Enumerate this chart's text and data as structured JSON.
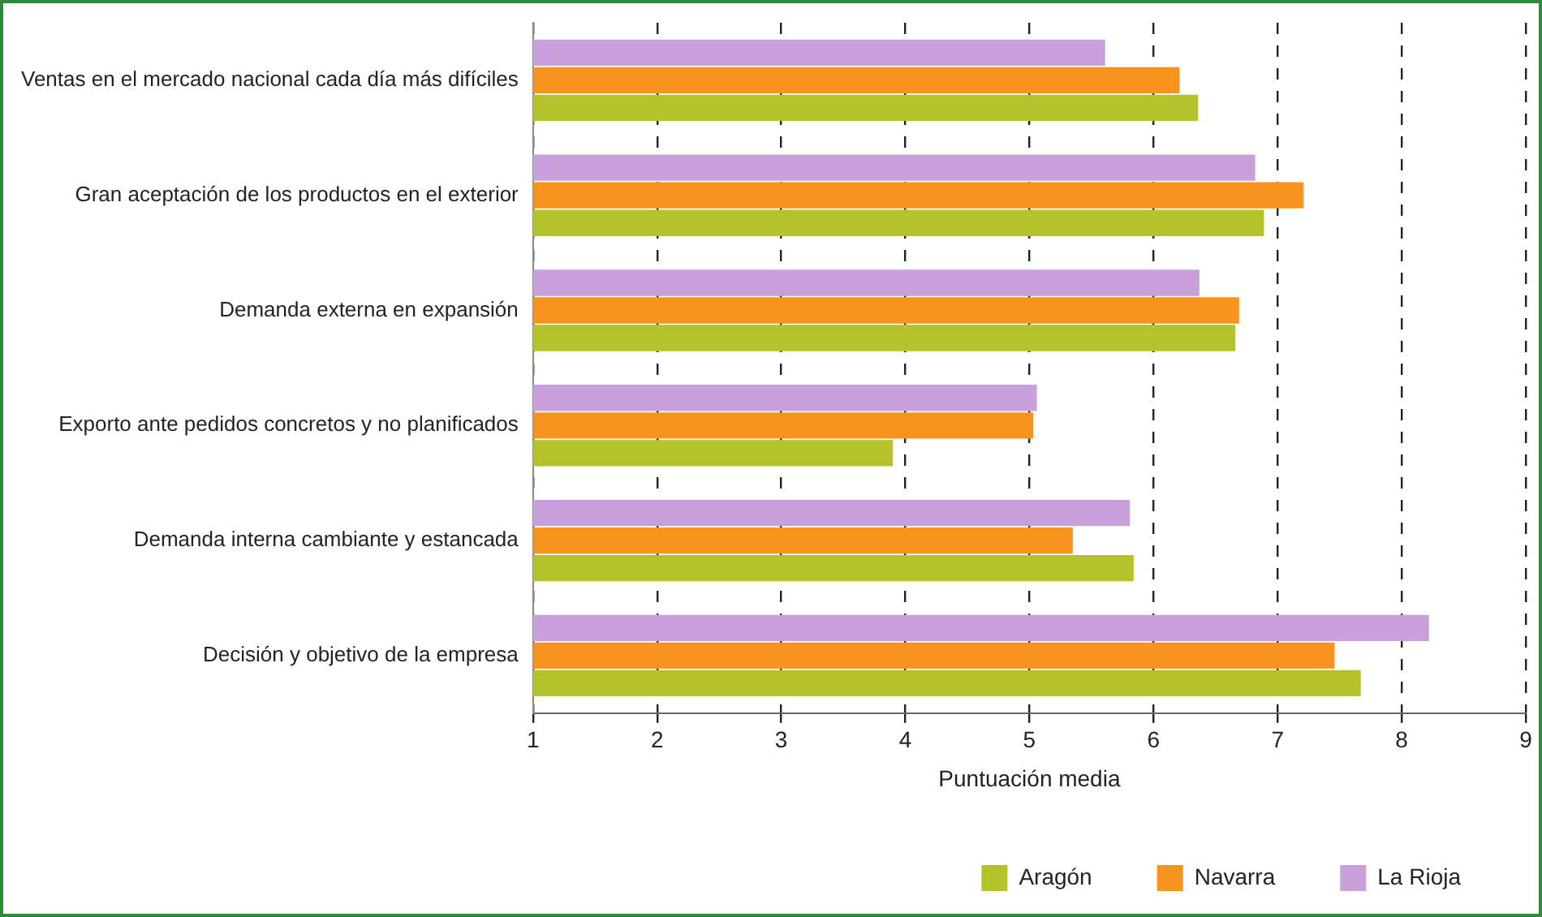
{
  "chart_data": {
    "type": "bar",
    "orientation": "horizontal",
    "xlabel": "Puntuación media",
    "categories": [
      "Ventas en el mercado nacional cada día más difíciles",
      "Gran aceptación de los productos en el exterior",
      "Demanda externa en expansión",
      "Exporto ante pedidos concretos y no planificados",
      "Demanda interna cambiante y estancada",
      "Decisión y objetivo de la empresa"
    ],
    "series": [
      {
        "name": "Aragón",
        "color": "#b5c22a",
        "values": [
          6.36,
          6.89,
          6.66,
          3.9,
          5.84,
          7.67
        ]
      },
      {
        "name": "Navarra",
        "color": "#f7941d",
        "values": [
          6.21,
          7.21,
          6.69,
          5.03,
          5.35,
          7.46
        ]
      },
      {
        "name": "La Rioja",
        "color": "#c9a0dc",
        "values": [
          5.61,
          6.82,
          6.37,
          5.06,
          5.81,
          8.22
        ]
      }
    ],
    "xlim": [
      1,
      9
    ],
    "xticks": [
      1,
      2,
      3,
      4,
      5,
      6,
      7,
      8,
      9
    ],
    "grid": "x",
    "legend": "bottom right"
  }
}
